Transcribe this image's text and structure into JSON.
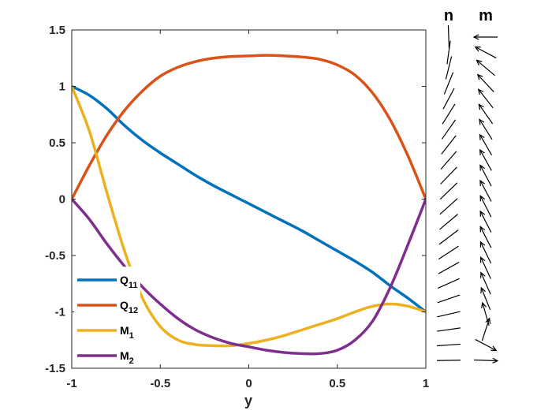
{
  "chart_data": [
    {
      "type": "line",
      "xlabel": "y",
      "ylabel": "",
      "xlim": [
        -1,
        1
      ],
      "ylim": [
        -1.5,
        1.5
      ],
      "xticks": [
        "-1",
        "-0.5",
        "0",
        "0.5",
        "1"
      ],
      "yticks": [
        "1.5",
        "1",
        "0.5",
        "0",
        "-0.5",
        "-1",
        "-1.5"
      ],
      "grid": false,
      "legend_position": "bottom-left",
      "x": [
        -1,
        -0.9,
        -0.8,
        -0.7,
        -0.6,
        -0.5,
        -0.4,
        -0.3,
        -0.2,
        -0.1,
        0,
        0.1,
        0.2,
        0.3,
        0.4,
        0.5,
        0.6,
        0.7,
        0.8,
        0.9,
        1
      ],
      "series": [
        {
          "name": "Q",
          "sub": "11",
          "color": "#0072BD",
          "values": [
            1.0,
            0.92,
            0.8,
            0.65,
            0.52,
            0.41,
            0.31,
            0.21,
            0.12,
            0.04,
            -0.04,
            -0.12,
            -0.2,
            -0.28,
            -0.37,
            -0.46,
            -0.55,
            -0.65,
            -0.77,
            -0.88,
            -1.0
          ]
        },
        {
          "name": "Q",
          "sub": "12",
          "color": "#D95319",
          "values": [
            0.0,
            0.3,
            0.57,
            0.79,
            0.96,
            1.09,
            1.17,
            1.22,
            1.25,
            1.265,
            1.27,
            1.275,
            1.27,
            1.26,
            1.24,
            1.19,
            1.1,
            0.94,
            0.7,
            0.38,
            0.0
          ]
        },
        {
          "name": "M",
          "sub": "1",
          "color": "#EDB120",
          "values": [
            1.0,
            0.6,
            0.05,
            -0.47,
            -0.88,
            -1.13,
            -1.25,
            -1.29,
            -1.3,
            -1.3,
            -1.28,
            -1.25,
            -1.21,
            -1.16,
            -1.11,
            -1.06,
            -1.0,
            -0.95,
            -0.93,
            -0.95,
            -1.0
          ]
        },
        {
          "name": "M",
          "sub": "2",
          "color": "#7E2F8E",
          "values": [
            0.0,
            -0.18,
            -0.4,
            -0.6,
            -0.78,
            -0.93,
            -1.06,
            -1.16,
            -1.23,
            -1.28,
            -1.31,
            -1.34,
            -1.36,
            -1.37,
            -1.37,
            -1.34,
            -1.25,
            -1.08,
            -0.78,
            -0.4,
            0.0
          ]
        }
      ]
    },
    {
      "type": "quiver",
      "panels": [
        {
          "title": "n",
          "arrows": false,
          "angles_deg": [
            92,
            82,
            76,
            68,
            62,
            58,
            55,
            52,
            49,
            46,
            44,
            42,
            40,
            37,
            33,
            29,
            24,
            19,
            13,
            8,
            4,
            1
          ]
        },
        {
          "title": "m",
          "arrows": true,
          "angles_deg": [
            180,
            152,
            140,
            133,
            128,
            125,
            122,
            120,
            119,
            118,
            118,
            117,
            117,
            117,
            116,
            115,
            114,
            112,
            106,
            72,
            -28,
            -2
          ]
        }
      ]
    }
  ]
}
